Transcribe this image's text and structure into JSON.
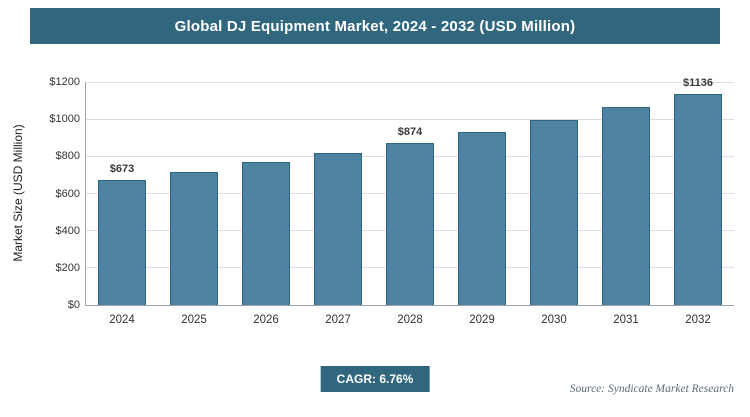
{
  "header": {
    "title": "Global DJ Equipment Market, 2024 - 2032 (USD Million)"
  },
  "chart_data": {
    "type": "bar",
    "title": "Global DJ Equipment Market, 2024 - 2032 (USD Million)",
    "categories": [
      "2024",
      "2025",
      "2026",
      "2027",
      "2028",
      "2029",
      "2030",
      "2031",
      "2032"
    ],
    "values": [
      673,
      718,
      767,
      819,
      874,
      933,
      996,
      1064,
      1136
    ],
    "value_labels": [
      "$673",
      "",
      "",
      "",
      "$874",
      "",
      "",
      "",
      "$1136"
    ],
    "xlabel": "",
    "ylabel": "Market Size (USD Million)",
    "ylim": [
      0,
      1200
    ],
    "ytick_step": 200,
    "ytick_labels": [
      "$0",
      "$200",
      "$400",
      "$600",
      "$800",
      "$1000",
      "$1200"
    ],
    "grid": true,
    "legend": "none",
    "bar_color": "#4d83a0",
    "bar_border_color": "#2e657e"
  },
  "footer": {
    "cagr_label": "CAGR: 6.76%",
    "source": "Source: Syndicate Market Research"
  },
  "colors": {
    "header_bg": "#30677e",
    "badge_bg": "#30677e"
  }
}
